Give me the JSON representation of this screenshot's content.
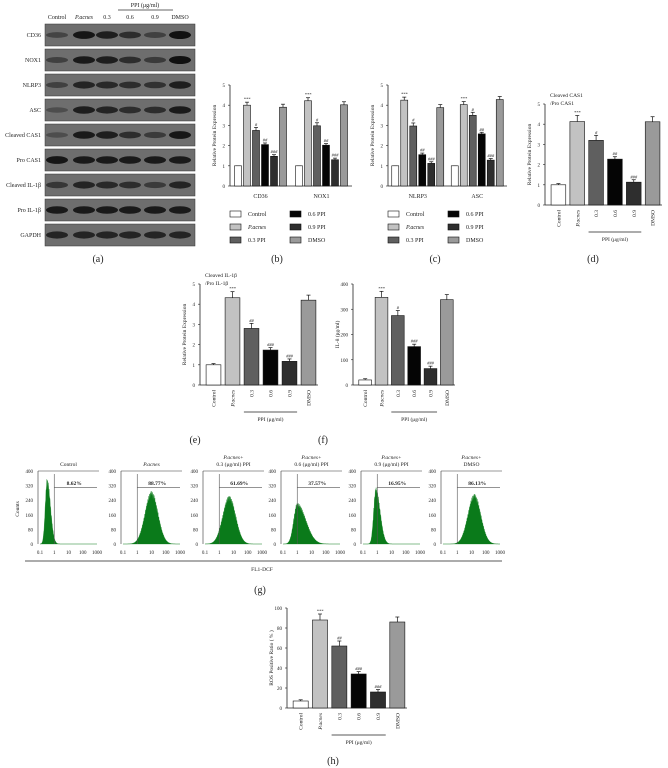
{
  "colors": {
    "Control": "#ffffff",
    "P.acnes": "#c2c2c2",
    "0.3": "#5f5f5f",
    "0.6": "#050505",
    "0.9": "#2e2e2e",
    "DMSO": "#9a9a9a",
    "flow": "#0a7a1a"
  },
  "panel_labels": [
    "(a)",
    "(b)",
    "(c)",
    "(d)",
    "(e)",
    "(f)",
    "(g)",
    "(h)"
  ],
  "blot": {
    "group_header": "PPI (μg/ml)",
    "lanes": [
      "Control",
      "P.acnes",
      "0.3",
      "0.6",
      "0.9",
      "DMSO"
    ],
    "rows": [
      "CD36",
      "NOX1",
      "NLRP3",
      "ASC",
      "Cleaved CAS1",
      "Pro CAS1",
      "Cleaved IL-1β",
      "Pro IL-1β",
      "GAPDH"
    ]
  },
  "chart_data": [
    {
      "id": "b",
      "type": "bar",
      "ylabel": "Relative Protein Expression",
      "ylim": [
        0,
        5
      ],
      "yticks": [
        0,
        1,
        2,
        3,
        4,
        5
      ],
      "categories": [
        "CD36",
        "NOX1"
      ],
      "series": [
        {
          "name": "Control",
          "values": [
            1,
            1
          ],
          "sig": [
            "",
            ""
          ]
        },
        {
          "name": "P.acnes",
          "values": [
            4.0,
            4.22
          ],
          "sig": [
            "***",
            "***"
          ]
        },
        {
          "name": "0.3 PPI",
          "values": [
            2.75,
            2.98
          ],
          "sig": [
            "#",
            "#"
          ]
        },
        {
          "name": "0.6 PPI",
          "values": [
            2.05,
            2.02
          ],
          "sig": [
            "##",
            "##"
          ]
        },
        {
          "name": "0.9 PPI",
          "values": [
            1.47,
            1.3
          ],
          "sig": [
            "###",
            "###"
          ]
        },
        {
          "name": "DMSO",
          "values": [
            3.9,
            4.02
          ],
          "sig": [
            "",
            ""
          ]
        }
      ],
      "legend": "bottom"
    },
    {
      "id": "c",
      "type": "bar",
      "ylabel": "Relative Protein Expression",
      "ylim": [
        0,
        5
      ],
      "yticks": [
        0,
        1,
        2,
        3,
        4,
        5
      ],
      "categories": [
        "NLRP3",
        "ASC"
      ],
      "series": [
        {
          "name": "Control",
          "values": [
            1,
            1
          ],
          "sig": [
            "",
            ""
          ]
        },
        {
          "name": "P.acnes",
          "values": [
            4.25,
            4.03
          ],
          "sig": [
            "***",
            "***"
          ]
        },
        {
          "name": "0.3 PPI",
          "values": [
            2.97,
            3.5
          ],
          "sig": [
            "#",
            "#"
          ]
        },
        {
          "name": "0.6 PPI",
          "values": [
            1.55,
            2.58
          ],
          "sig": [
            "##",
            "##"
          ]
        },
        {
          "name": "0.9 PPI",
          "values": [
            1.12,
            1.28
          ],
          "sig": [
            "###",
            "###"
          ]
        },
        {
          "name": "DMSO",
          "values": [
            3.88,
            4.28
          ],
          "sig": [
            "",
            ""
          ]
        }
      ],
      "legend": "bottom"
    },
    {
      "id": "d",
      "type": "bar",
      "title": [
        "Cleaved CAS1",
        "/Pro CAS1"
      ],
      "ylabel": "Relative Protein Expression",
      "ylim": [
        0,
        5
      ],
      "yticks": [
        0,
        1,
        2,
        3,
        4,
        5
      ],
      "categories": [
        "Control",
        "P.acnes",
        "0.3",
        "0.6",
        "0.9",
        "DMSO"
      ],
      "group_label": "PPI (μg/ml)",
      "values": [
        1,
        4.13,
        3.2,
        2.27,
        1.13,
        4.12
      ],
      "sig": [
        "",
        "***",
        "#",
        "##",
        "###",
        ""
      ]
    },
    {
      "id": "e",
      "type": "bar",
      "title": [
        "Cleaved IL-1β",
        "/Pro IL-1β"
      ],
      "ylabel": "Relative Protein Expression",
      "ylim": [
        0,
        5
      ],
      "yticks": [
        0,
        1,
        2,
        3,
        4,
        5
      ],
      "categories": [
        "Control",
        "P.acnes",
        "0.3",
        "0.6",
        "0.9",
        "DMSO"
      ],
      "group_label": "PPI (μg/ml)",
      "values": [
        1,
        4.32,
        2.8,
        1.73,
        1.17,
        4.2
      ],
      "sig": [
        "",
        "***",
        "##",
        "###",
        "###",
        ""
      ]
    },
    {
      "id": "f",
      "type": "bar",
      "ylabel": "IL-8 (pg/ml)",
      "ylim": [
        0,
        400
      ],
      "yticks": [
        0,
        100,
        200,
        300,
        400
      ],
      "categories": [
        "Control",
        "P.acnes",
        "0.3",
        "0.6",
        "0.9",
        "DMSO"
      ],
      "group_label": "PPI (μg/ml)",
      "values": [
        20,
        347,
        275,
        152,
        65,
        338
      ],
      "sig": [
        "",
        "***",
        "#",
        "###",
        "###",
        ""
      ]
    },
    {
      "id": "g",
      "type": "histogram",
      "ylabel": "Counts",
      "xlabel": "FL1-DCF",
      "xscale": "log",
      "xticks": [
        "0.1",
        "1",
        "10",
        "100",
        "1000"
      ],
      "yticks": [
        0,
        80,
        160,
        240,
        320,
        400
      ],
      "ylim": [
        0,
        400
      ],
      "panels": [
        {
          "title": [
            "Control"
          ],
          "percent": "8.62%"
        },
        {
          "title": [
            "P.acnes"
          ],
          "percent": "88.77%"
        },
        {
          "title": [
            "P.acnes+",
            "0.3 (μg/ml) PPI"
          ],
          "percent": "61.69%"
        },
        {
          "title": [
            "P.acnes+",
            "0.6 (μg/ml) PPI"
          ],
          "percent": "37.57%"
        },
        {
          "title": [
            "P.acnes+",
            "0.9 (μg/ml) PPI"
          ],
          "percent": "16.95%"
        },
        {
          "title": [
            "P.acnes+",
            "DMSO"
          ],
          "percent": "86.13%"
        }
      ]
    },
    {
      "id": "h",
      "type": "bar",
      "ylabel": "ROS Positive Ratio ( % )",
      "ylim": [
        0,
        100
      ],
      "yticks": [
        0,
        20,
        40,
        60,
        80,
        100
      ],
      "categories": [
        "Control",
        "P.acnes",
        "0.3",
        "0.6",
        "0.9",
        "DMSO"
      ],
      "group_label": "PPI (μg/ml)",
      "values": [
        7,
        88,
        62,
        34,
        16,
        86
      ],
      "sig": [
        "",
        "***",
        "##",
        "###",
        "###",
        ""
      ]
    }
  ]
}
